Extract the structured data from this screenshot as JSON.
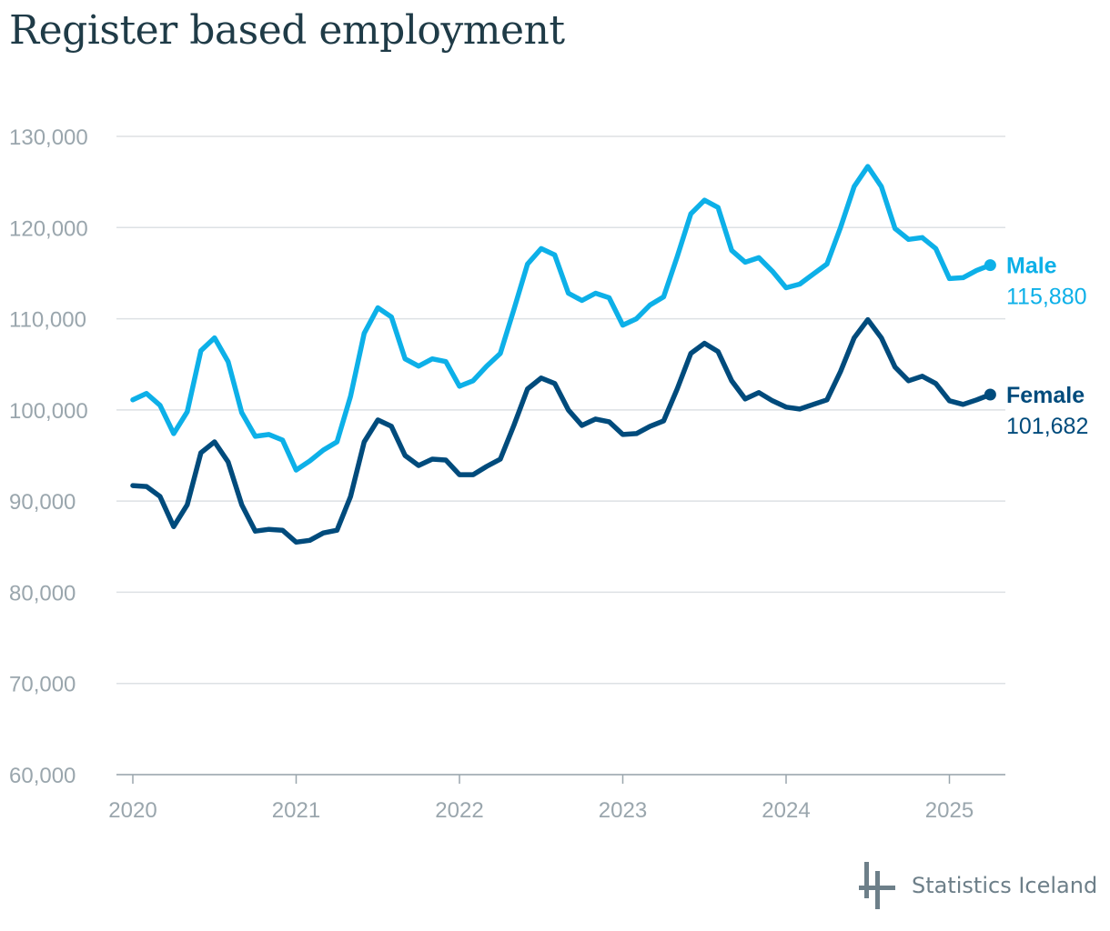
{
  "title": "Register based employment",
  "source": "Statistics Iceland",
  "colors": {
    "male": "#0db0e8",
    "female": "#004b7c",
    "grid": "#dde1e4",
    "tick": "#9aa6ad",
    "title": "#1f3b47",
    "logo": "#6d7f89"
  },
  "chart_data": {
    "type": "line",
    "title": "Register based employment",
    "xlabel": "",
    "ylabel": "",
    "ylim": [
      60000,
      130000
    ],
    "yticks": [
      60000,
      70000,
      80000,
      90000,
      100000,
      110000,
      120000,
      130000
    ],
    "ytick_labels": [
      "60,000",
      "70,000",
      "80,000",
      "90,000",
      "100,000",
      "110,000",
      "120,000",
      "130,000"
    ],
    "xticks": [
      "2020",
      "2021",
      "2022",
      "2023",
      "2024",
      "2025"
    ],
    "grid": true,
    "x_start": "2020-01",
    "x_end": "2025-04",
    "series": [
      {
        "name": "Male",
        "end_label": "115,880",
        "color": "#0db0e8",
        "values": [
          101100,
          101800,
          100500,
          97400,
          99800,
          106500,
          107900,
          105300,
          99700,
          97100,
          97300,
          96700,
          93400,
          94400,
          95600,
          96500,
          101500,
          108400,
          111200,
          110200,
          105600,
          104800,
          105600,
          105300,
          102600,
          103200,
          104800,
          106200,
          111000,
          116000,
          117700,
          117000,
          112800,
          112000,
          112800,
          112300,
          109300,
          110000,
          111500,
          112400,
          116800,
          121500,
          123000,
          122200,
          117500,
          116200,
          116700,
          115200,
          113400,
          113800,
          114900,
          116000,
          120000,
          124500,
          126700,
          124500,
          119900,
          118700,
          118900,
          117700,
          114400,
          114500,
          115300,
          115880
        ]
      },
      {
        "name": "Female",
        "end_label": "101,682",
        "color": "#004b7c",
        "values": [
          91700,
          91600,
          90500,
          87200,
          89600,
          95300,
          96500,
          94300,
          89600,
          86700,
          86900,
          86800,
          85500,
          85700,
          86500,
          86800,
          90500,
          96500,
          98900,
          98200,
          95000,
          93900,
          94600,
          94500,
          92900,
          92900,
          93800,
          94600,
          98300,
          102300,
          103500,
          102900,
          100000,
          98300,
          99000,
          98700,
          97300,
          97400,
          98200,
          98800,
          102300,
          106200,
          107300,
          106400,
          103200,
          101200,
          101900,
          101000,
          100300,
          100100,
          100600,
          101100,
          104200,
          107900,
          109900,
          107900,
          104700,
          103200,
          103700,
          102900,
          101000,
          100600,
          101100,
          101682
        ]
      }
    ]
  }
}
